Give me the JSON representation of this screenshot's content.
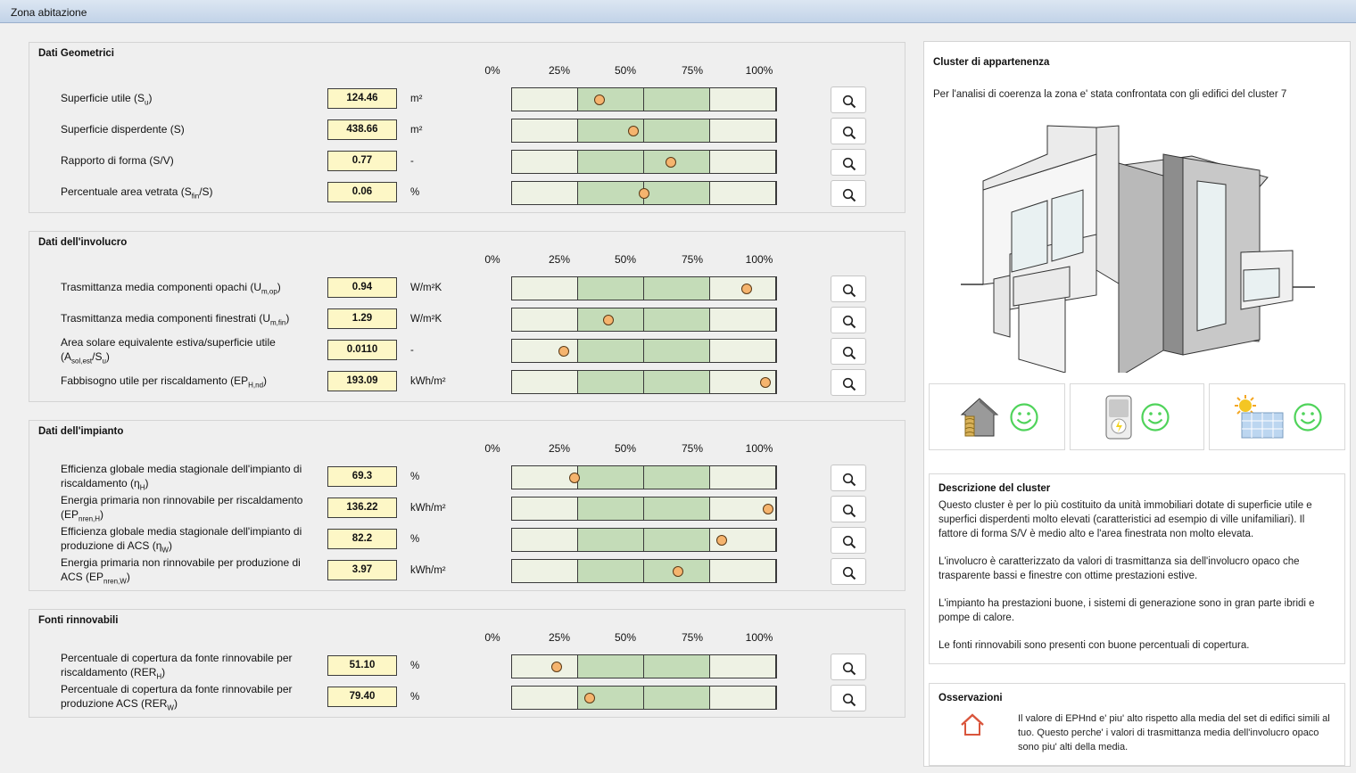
{
  "window": {
    "title": "Zona abitazione"
  },
  "scale": [
    "0%",
    "25%",
    "50%",
    "75%",
    "100%"
  ],
  "sections": [
    {
      "title": "Dati Geometrici",
      "rows": [
        {
          "label": "Superficie utile (S<sub>u</sub>)",
          "value": "124.46",
          "unit": "m²",
          "pct": 0.33
        },
        {
          "label": "Superficie disperdente (S)",
          "value": "438.66",
          "unit": "m²",
          "pct": 0.46
        },
        {
          "label": "Rapporto di forma (S/V)",
          "value": "0.77",
          "unit": "-",
          "pct": 0.6
        },
        {
          "label": "Percentuale area vetrata (S<sub>fin</sub>/S)",
          "value": "0.06",
          "unit": "%",
          "pct": 0.5
        }
      ]
    },
    {
      "title": "Dati dell'involucro",
      "rows": [
        {
          "label": "Trasmittanza media componenti opachi (U<sub>m,op</sub>)",
          "value": "0.94",
          "unit": "W/m²K",
          "pct": 0.89
        },
        {
          "label": "Trasmittanza media componenti finestrati (U<sub>m,fin</sub>)",
          "value": "1.29",
          "unit": "W/m²K",
          "pct": 0.365
        },
        {
          "label": "Area solare equivalente estiva/superficie utile (A<sub>sol,est</sub>/S<sub>u</sub>)",
          "value": "0.0110",
          "unit": "-",
          "pct": 0.195
        },
        {
          "label": "Fabbisogno utile per riscaldamento (EP<sub>H,nd</sub>)",
          "value": "193.09",
          "unit": "kWh/m²",
          "pct": 0.96
        }
      ]
    },
    {
      "title": "Dati dell'impianto",
      "rows": [
        {
          "label": "Efficienza globale media stagionale dell'impianto di riscaldamento (η<sub>H</sub>)",
          "value": "69.3",
          "unit": "%",
          "pct": 0.235
        },
        {
          "label": "Energia primaria non rinnovabile per riscaldamento (EP<sub>nren,H</sub>)",
          "value": "136.22",
          "unit": "kWh/m²",
          "pct": 0.97
        },
        {
          "label": "Efficienza globale media stagionale dell'impianto di produzione di ACS (η<sub>W</sub>)",
          "value": "82.2",
          "unit": "%",
          "pct": 0.795
        },
        {
          "label": "Energia primaria non rinnovabile per produzione di ACS (EP<sub>nren,W</sub>)",
          "value": "3.97",
          "unit": "kWh/m²",
          "pct": 0.63
        }
      ]
    },
    {
      "title": "Fonti rinnovabili",
      "rows": [
        {
          "label": "Percentuale di copertura da fonte rinnovabile per riscaldamento (RER<sub>H</sub>)",
          "value": "51.10",
          "unit": "%",
          "pct": 0.17
        },
        {
          "label": "Percentuale di copertura da fonte rinnovabile per produzione ACS (RER<sub>W</sub>)",
          "value": "79.40",
          "unit": "%",
          "pct": 0.295
        }
      ]
    }
  ],
  "cluster": {
    "title": "Cluster di appartenenza",
    "intro": "Per l'analisi di coerenza la zona e' stata confrontata con gli edifici del cluster 7"
  },
  "descrizione": {
    "title": "Descrizione del cluster",
    "p1": "Questo cluster è per lo più costituito da unità immobiliari dotate di superficie utile e superfici disperdenti molto elevati (caratteristici ad esempio di ville unifamiliari). Il fattore di forma S/V è medio alto e l'area finestrata non molto elevata.",
    "p2": "L'involucro è caratterizzato da valori di trasmittanza sia dell'involucro opaco che trasparente bassi e finestre con ottime prestazioni estive.",
    "p3": "L'impianto ha prestazioni buone, i sistemi di generazione sono in gran parte ibridi e pompe di calore.",
    "p4": "Le fonti rinnovabili sono presenti con buone percentuali di copertura."
  },
  "osservazioni": {
    "title": "Osservazioni",
    "text": "Il valore di EPHnd e' piu' alto rispetto alla media del set di edifici simili al tuo. Questo perche' i valori di trasmittanza media dell'involucro opaco sono piu' alti della media."
  },
  "colors": {
    "bar_outer": "#eef2e4",
    "bar_inner": "#c4dcb8",
    "dot": "#f5b46e",
    "value_bg": "#fdf7c6",
    "smile": "#4fd35a",
    "home_icon": "#d9553c"
  }
}
